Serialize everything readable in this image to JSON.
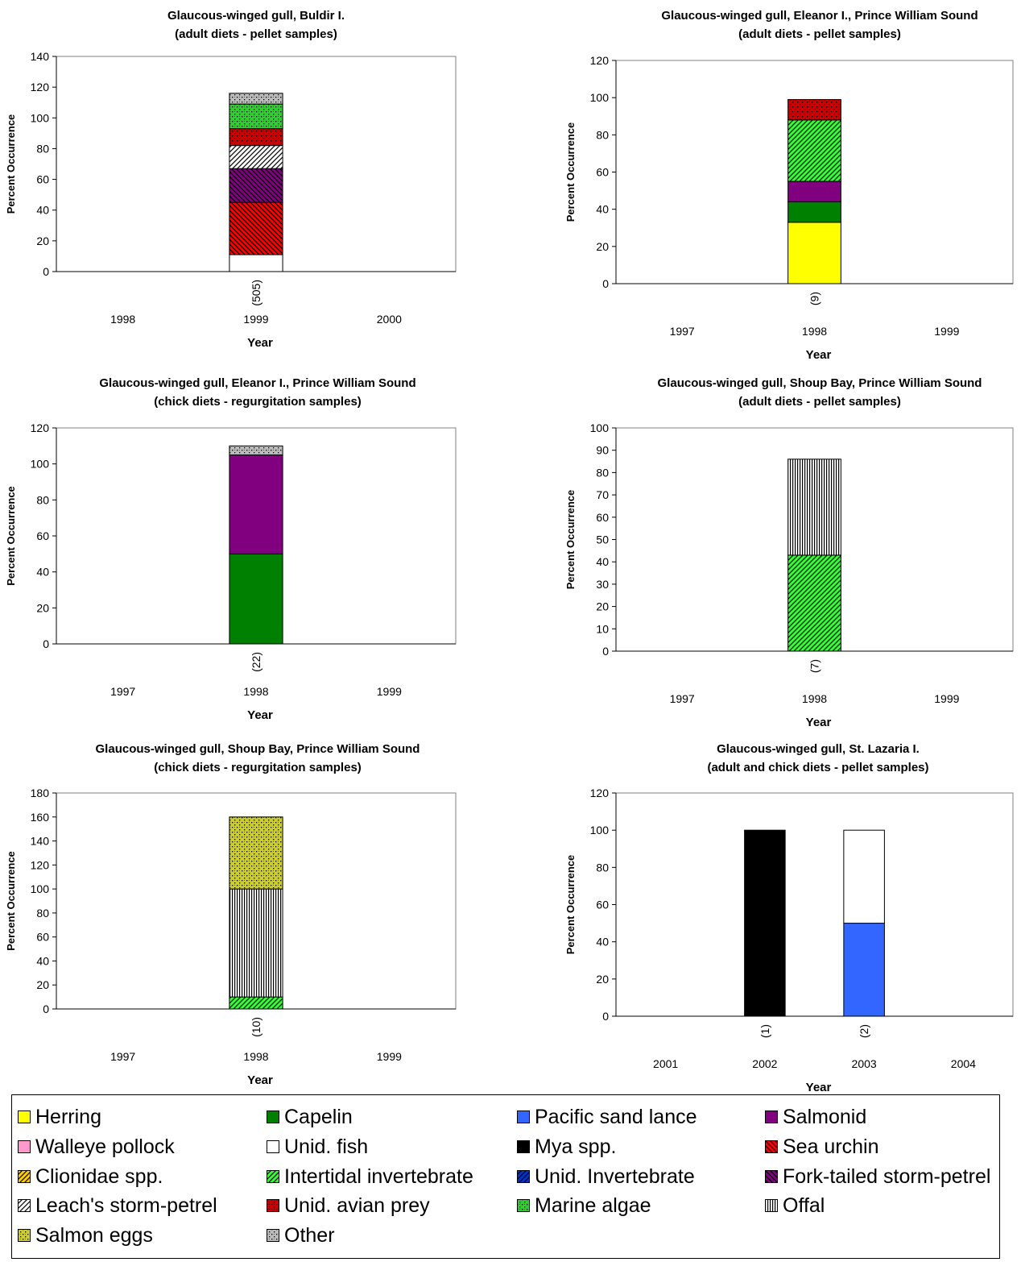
{
  "patterns": {
    "herring": {
      "kind": "solid",
      "fg": "#FFFF00"
    },
    "capelin": {
      "kind": "solid",
      "fg": "#008000"
    },
    "pacific_sand_lance": {
      "kind": "solid",
      "fg": "#3366FF"
    },
    "salmonid": {
      "kind": "solid",
      "fg": "#800080"
    },
    "walleye_pollock": {
      "kind": "solid",
      "fg": "#FF99CC"
    },
    "unid_fish": {
      "kind": "solid",
      "fg": "#FFFFFF"
    },
    "mya_spp": {
      "kind": "solid",
      "fg": "#000000"
    },
    "sea_urchin": {
      "kind": "diag",
      "fg": "#000000",
      "bg": "#FF0000"
    },
    "clionidae_spp": {
      "kind": "diag-up",
      "fg": "#000000",
      "bg": "#FFCC00"
    },
    "intertidal_invertebrate": {
      "kind": "diag-up",
      "fg": "#000000",
      "bg": "#33FF33"
    },
    "unid_invertebrate": {
      "kind": "diag-up",
      "fg": "#000000",
      "bg": "#0033CC"
    },
    "fork_tailed_storm_petrel": {
      "kind": "diag",
      "fg": "#000000",
      "bg": "#800080"
    },
    "leachs_storm_petrel": {
      "kind": "diag-up",
      "fg": "#000000",
      "bg": "#FFFFFF"
    },
    "unid_avian_prey": {
      "kind": "dots",
      "fg": "#000000",
      "bg": "#CC0000"
    },
    "marine_algae": {
      "kind": "dots",
      "fg": "#000000",
      "bg": "#33CC33"
    },
    "offal": {
      "kind": "vlines",
      "fg": "#000000",
      "bg": "#FFFFFF"
    },
    "salmon_eggs": {
      "kind": "dots",
      "fg": "#000000",
      "bg": "#CCCC33"
    },
    "other": {
      "kind": "dots",
      "fg": "#000000",
      "bg": "#BBBBBB"
    }
  },
  "legend": [
    {
      "key": "herring",
      "label": "Herring"
    },
    {
      "key": "capelin",
      "label": "Capelin"
    },
    {
      "key": "pacific_sand_lance",
      "label": "Pacific sand lance"
    },
    {
      "key": "salmonid",
      "label": "Salmonid"
    },
    {
      "key": "walleye_pollock",
      "label": "Walleye pollock"
    },
    {
      "key": "unid_fish",
      "label": "Unid. fish"
    },
    {
      "key": "mya_spp",
      "label": "Mya spp."
    },
    {
      "key": "sea_urchin",
      "label": "Sea urchin"
    },
    {
      "key": "clionidae_spp",
      "label": "Clionidae spp."
    },
    {
      "key": "intertidal_invertebrate",
      "label": "Intertidal invertebrate"
    },
    {
      "key": "unid_invertebrate",
      "label": "Unid. Invertebrate"
    },
    {
      "key": "fork_tailed_storm_petrel",
      "label": "Fork-tailed storm-petrel"
    },
    {
      "key": "leachs_storm_petrel",
      "label": "Leach's storm-petrel"
    },
    {
      "key": "unid_avian_prey",
      "label": "Unid. avian prey"
    },
    {
      "key": "marine_algae",
      "label": "Marine algae"
    },
    {
      "key": "offal",
      "label": "Offal"
    },
    {
      "key": "salmon_eggs",
      "label": "Salmon eggs"
    },
    {
      "key": "other",
      "label": "Other"
    }
  ],
  "chart_data": [
    {
      "type": "bar",
      "stacked": true,
      "title": "Glaucous-winged gull, Buldir I.",
      "subtitle": "(adult diets - pellet samples)",
      "xlabel": "Year",
      "ylabel": "Percent Occurrence",
      "categories": [
        "1998",
        "1999",
        "2000"
      ],
      "sample_sizes": [
        "",
        "(505)",
        ""
      ],
      "ylim": [
        0,
        140
      ],
      "yticks": [
        0,
        20,
        40,
        60,
        80,
        100,
        120,
        140
      ],
      "series": [
        {
          "key": "unid_fish",
          "values": [
            0,
            11,
            0
          ]
        },
        {
          "key": "sea_urchin",
          "values": [
            0,
            34,
            0
          ]
        },
        {
          "key": "fork_tailed_storm_petrel",
          "values": [
            0,
            22,
            0
          ]
        },
        {
          "key": "leachs_storm_petrel",
          "values": [
            0,
            15,
            0
          ]
        },
        {
          "key": "unid_avian_prey",
          "values": [
            0,
            11,
            0
          ]
        },
        {
          "key": "marine_algae",
          "values": [
            0,
            16,
            0
          ]
        },
        {
          "key": "other",
          "values": [
            0,
            7,
            0
          ]
        }
      ]
    },
    {
      "type": "bar",
      "stacked": true,
      "title": "Glaucous-winged gull, Eleanor I., Prince William Sound",
      "subtitle": "(adult diets - pellet samples)",
      "xlabel": "Year",
      "ylabel": "Percent Occurrence",
      "categories": [
        "1997",
        "1998",
        "1999"
      ],
      "sample_sizes": [
        "",
        "(9)",
        ""
      ],
      "ylim": [
        0,
        120
      ],
      "yticks": [
        0,
        20,
        40,
        60,
        80,
        100,
        120
      ],
      "series": [
        {
          "key": "herring",
          "values": [
            0,
            33,
            0
          ]
        },
        {
          "key": "capelin",
          "values": [
            0,
            11,
            0
          ]
        },
        {
          "key": "salmonid",
          "values": [
            0,
            11,
            0
          ]
        },
        {
          "key": "intertidal_invertebrate",
          "values": [
            0,
            33,
            0
          ]
        },
        {
          "key": "unid_avian_prey",
          "values": [
            0,
            11,
            0
          ]
        }
      ]
    },
    {
      "type": "bar",
      "stacked": true,
      "title": "Glaucous-winged gull, Eleanor I., Prince William Sound",
      "subtitle": "(chick diets - regurgitation samples)",
      "xlabel": "Year",
      "ylabel": "Percent Occurrence",
      "categories": [
        "1997",
        "1998",
        "1999"
      ],
      "sample_sizes": [
        "",
        "(22)",
        ""
      ],
      "ylim": [
        0,
        120
      ],
      "yticks": [
        0,
        20,
        40,
        60,
        80,
        100,
        120
      ],
      "series": [
        {
          "key": "capelin",
          "values": [
            0,
            50,
            0
          ]
        },
        {
          "key": "salmonid",
          "values": [
            0,
            55,
            0
          ]
        },
        {
          "key": "other",
          "values": [
            0,
            5,
            0
          ]
        }
      ]
    },
    {
      "type": "bar",
      "stacked": true,
      "title": "Glaucous-winged gull, Shoup Bay, Prince William Sound",
      "subtitle": "(adult diets - pellet samples)",
      "xlabel": "Year",
      "ylabel": "Percent Occurrence",
      "categories": [
        "1997",
        "1998",
        "1999"
      ],
      "sample_sizes": [
        "",
        "(7)",
        ""
      ],
      "ylim": [
        0,
        100
      ],
      "yticks": [
        0,
        10,
        20,
        30,
        40,
        50,
        60,
        70,
        80,
        90,
        100
      ],
      "series": [
        {
          "key": "intertidal_invertebrate",
          "values": [
            0,
            43,
            0
          ]
        },
        {
          "key": "offal",
          "values": [
            0,
            43,
            0
          ]
        }
      ]
    },
    {
      "type": "bar",
      "stacked": true,
      "title": "Glaucous-winged gull, Shoup Bay, Prince William Sound",
      "subtitle": "(chick diets - regurgitation samples)",
      "xlabel": "Year",
      "ylabel": "Percent Occurrence",
      "categories": [
        "1997",
        "1998",
        "1999"
      ],
      "sample_sizes": [
        "",
        "(10)",
        ""
      ],
      "ylim": [
        0,
        180
      ],
      "yticks": [
        0,
        20,
        40,
        60,
        80,
        100,
        120,
        140,
        160,
        180
      ],
      "series": [
        {
          "key": "intertidal_invertebrate",
          "values": [
            0,
            10,
            0
          ]
        },
        {
          "key": "offal",
          "values": [
            0,
            90,
            0
          ]
        },
        {
          "key": "salmon_eggs",
          "values": [
            0,
            60,
            0
          ]
        }
      ]
    },
    {
      "type": "bar",
      "stacked": true,
      "title": "Glaucous-winged gull, St. Lazaria I.",
      "subtitle": "(adult and chick diets - pellet samples)",
      "xlabel": "Year",
      "ylabel": "Percent Occurrence",
      "categories": [
        "2001",
        "2002",
        "2003",
        "2004"
      ],
      "sample_sizes": [
        "",
        "(1)",
        "(2)",
        ""
      ],
      "ylim": [
        0,
        120
      ],
      "yticks": [
        0,
        20,
        40,
        60,
        80,
        100,
        120
      ],
      "series": [
        {
          "key": "mya_spp",
          "values": [
            0,
            100,
            0,
            0
          ]
        },
        {
          "key": "pacific_sand_lance",
          "values": [
            0,
            0,
            50,
            0
          ]
        },
        {
          "key": "unid_fish",
          "values": [
            0,
            0,
            50,
            0
          ]
        }
      ]
    }
  ]
}
